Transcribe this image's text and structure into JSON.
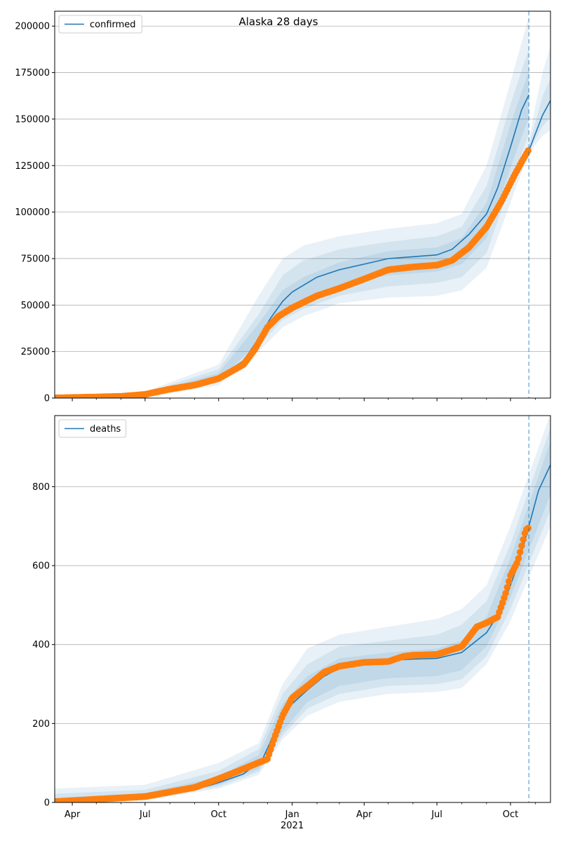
{
  "figure": {
    "suptitle": "Alaska 28 days"
  },
  "colors": {
    "model": "#1f77b4",
    "observed": "#ff7f0e",
    "band": "#1f77b4",
    "grid": "#b0b0b0",
    "forecast_line": "#1f77b4"
  },
  "chart_data": [
    {
      "type": "line",
      "legend": "top-left",
      "legend_label": "confirmed",
      "x_axis_type": "date",
      "xlim": [
        "2020-03-10",
        "2021-11-20"
      ],
      "ylim": [
        0,
        208000
      ],
      "y_ticks": [
        0,
        25000,
        50000,
        75000,
        100000,
        125000,
        150000,
        175000,
        200000
      ],
      "y_tick_labels": [
        "0",
        "25000",
        "50000",
        "75000",
        "100000",
        "125000",
        "150000",
        "175000",
        "200000"
      ],
      "x_ticks": [
        "2020-04-01",
        "2020-07-01",
        "2020-10-01",
        "2021-01-01",
        "2021-04-01",
        "2021-07-01",
        "2021-10-01"
      ],
      "x_tick_labels": [
        "Apr",
        "Jul",
        "Oct",
        "Jan",
        "Apr",
        "Jul",
        "Oct"
      ],
      "x_minor_ticks": [
        "2020-05-01",
        "2020-06-01",
        "2020-08-01",
        "2020-09-01",
        "2020-11-01",
        "2020-12-01",
        "2021-02-01",
        "2021-03-01",
        "2021-05-01",
        "2021-06-01",
        "2021-08-01",
        "2021-09-01",
        "2021-11-01"
      ],
      "year_labels": [],
      "grid": "horizontal",
      "forecast_date": "2021-10-24",
      "series": [
        {
          "name": "confirmed",
          "role": "model",
          "x": [
            "2020-03-10",
            "2020-06-01",
            "2020-08-01",
            "2020-10-01",
            "2020-11-01",
            "2020-11-20",
            "2020-12-05",
            "2020-12-20",
            "2021-01-01",
            "2021-02-01",
            "2021-03-01",
            "2021-04-01",
            "2021-05-01",
            "2021-06-01",
            "2021-07-01",
            "2021-07-20",
            "2021-08-10",
            "2021-09-01",
            "2021-09-15",
            "2021-10-01",
            "2021-10-15",
            "2021-10-24"
          ],
          "y": [
            0,
            1000,
            5000,
            11500,
            20000,
            32000,
            43000,
            52000,
            57000,
            65000,
            69000,
            72000,
            75000,
            76000,
            77000,
            80000,
            88000,
            99000,
            113000,
            135000,
            155000,
            163000
          ]
        },
        {
          "name": "confirmed (continuation)",
          "role": "model_continuation",
          "x": [
            "2021-10-24",
            "2021-11-01",
            "2021-11-10",
            "2021-11-20"
          ],
          "y": [
            133000,
            142000,
            152000,
            160000
          ]
        },
        {
          "name": "observed",
          "role": "observed",
          "x": [
            "2020-03-10",
            "2020-06-01",
            "2020-07-01",
            "2020-08-01",
            "2020-09-01",
            "2020-10-01",
            "2020-11-01",
            "2020-11-15",
            "2020-12-01",
            "2020-12-15",
            "2021-01-01",
            "2021-02-01",
            "2021-03-01",
            "2021-04-01",
            "2021-05-01",
            "2021-06-01",
            "2021-07-01",
            "2021-07-20",
            "2021-08-10",
            "2021-09-01",
            "2021-09-20",
            "2021-10-05",
            "2021-10-15",
            "2021-10-23"
          ],
          "y": [
            100,
            900,
            2000,
            4800,
            7000,
            10500,
            18000,
            26000,
            38000,
            44000,
            48500,
            55000,
            59000,
            64000,
            69000,
            70500,
            71500,
            74000,
            81000,
            92000,
            106000,
            119000,
            127000,
            133000
          ]
        }
      ],
      "bands": [
        {
          "x": [
            "2020-03-10",
            "2020-07-01",
            "2020-10-01",
            "2020-11-20",
            "2020-12-20",
            "2021-01-15",
            "2021-03-01",
            "2021-05-01",
            "2021-07-01",
            "2021-08-01",
            "2021-09-01",
            "2021-10-01",
            "2021-10-24"
          ],
          "lower": [
            0,
            0,
            7000,
            25000,
            38000,
            44000,
            51000,
            54000,
            55000,
            58000,
            70000,
            105000,
            132000
          ],
          "upper": [
            1000,
            3500,
            18000,
            55000,
            75000,
            82000,
            87000,
            91000,
            94000,
            99000,
            125000,
            170000,
            205000
          ]
        },
        {
          "x": [
            "2020-03-10",
            "2020-07-01",
            "2020-10-01",
            "2020-11-20",
            "2020-12-20",
            "2021-01-15",
            "2021-03-01",
            "2021-05-01",
            "2021-07-01",
            "2021-08-01",
            "2021-09-01",
            "2021-10-01",
            "2021-10-24"
          ],
          "lower": [
            0,
            300,
            8500,
            28000,
            42000,
            48000,
            55000,
            60000,
            62000,
            65000,
            78000,
            115000,
            142000
          ],
          "upper": [
            700,
            2800,
            15500,
            45000,
            66000,
            74000,
            80000,
            84000,
            87000,
            92000,
            114000,
            158000,
            188000
          ]
        },
        {
          "x": [
            "2020-03-10",
            "2020-07-01",
            "2020-10-01",
            "2020-11-20",
            "2020-12-20",
            "2021-01-15",
            "2021-03-01",
            "2021-05-01",
            "2021-07-01",
            "2021-08-01",
            "2021-09-01",
            "2021-10-01",
            "2021-10-24"
          ],
          "lower": [
            0,
            500,
            9500,
            30000,
            46000,
            52000,
            60000,
            66000,
            68000,
            72000,
            86000,
            124000,
            151000
          ],
          "upper": [
            500,
            2300,
            13500,
            40000,
            58000,
            65000,
            73000,
            79000,
            81000,
            86000,
            105000,
            147000,
            176000
          ]
        },
        {
          "x": [
            "2021-10-24",
            "2021-11-01",
            "2021-11-10",
            "2021-11-20"
          ],
          "lower": [
            131000,
            136000,
            141000,
            144000
          ],
          "upper": [
            138000,
            157000,
            175000,
            189000
          ]
        },
        {
          "x": [
            "2021-10-24",
            "2021-11-01",
            "2021-11-10",
            "2021-11-20"
          ],
          "lower": [
            132000,
            139000,
            146000,
            151000
          ],
          "upper": [
            136000,
            148000,
            162000,
            172000
          ]
        }
      ]
    },
    {
      "type": "line",
      "legend": "top-left",
      "legend_label": "deaths",
      "x_axis_type": "date",
      "xlim": [
        "2020-03-10",
        "2021-11-20"
      ],
      "ylim": [
        0,
        980
      ],
      "y_ticks": [
        0,
        200,
        400,
        600,
        800
      ],
      "y_tick_labels": [
        "0",
        "200",
        "400",
        "600",
        "800"
      ],
      "x_ticks": [
        "2020-04-01",
        "2020-07-01",
        "2020-10-01",
        "2021-01-01",
        "2021-04-01",
        "2021-07-01",
        "2021-10-01"
      ],
      "x_tick_labels": [
        "Apr",
        "Jul",
        "Oct",
        "Jan",
        "Apr",
        "Jul",
        "Oct"
      ],
      "x_minor_ticks": [
        "2020-05-01",
        "2020-06-01",
        "2020-08-01",
        "2020-09-01",
        "2020-11-01",
        "2020-12-01",
        "2021-02-01",
        "2021-03-01",
        "2021-05-01",
        "2021-06-01",
        "2021-08-01",
        "2021-09-01",
        "2021-11-01"
      ],
      "year_labels": [
        {
          "x": "2021-01-01",
          "label": "2021"
        }
      ],
      "grid": "horizontal",
      "forecast_date": "2021-10-24",
      "series": [
        {
          "name": "deaths",
          "role": "model",
          "x": [
            "2020-03-10",
            "2020-07-01",
            "2020-09-01",
            "2020-10-01",
            "2020-11-01",
            "2020-11-25",
            "2020-12-15",
            "2021-01-01",
            "2021-01-20",
            "2021-02-10",
            "2021-03-01",
            "2021-04-01",
            "2021-05-01",
            "2021-06-01",
            "2021-07-01",
            "2021-08-01",
            "2021-09-01",
            "2021-09-20",
            "2021-10-10",
            "2021-10-24",
            "2021-11-05",
            "2021-11-20"
          ],
          "y": [
            3,
            15,
            32,
            50,
            72,
            110,
            200,
            250,
            285,
            320,
            340,
            355,
            360,
            363,
            365,
            380,
            430,
            490,
            600,
            700,
            790,
            855
          ]
        },
        {
          "name": "observed",
          "role": "observed",
          "x": [
            "2020-03-10",
            "2020-07-01",
            "2020-09-01",
            "2020-10-01",
            "2020-11-01",
            "2020-12-01",
            "2020-12-10",
            "2020-12-20",
            "2021-01-01",
            "2021-01-20",
            "2021-02-10",
            "2021-03-01",
            "2021-04-01",
            "2021-05-01",
            "2021-05-20",
            "2021-06-01",
            "2021-07-01",
            "2021-08-01",
            "2021-08-20",
            "2021-09-01",
            "2021-09-15",
            "2021-09-25",
            "2021-10-01",
            "2021-10-10",
            "2021-10-20",
            "2021-10-23"
          ],
          "y": [
            2,
            15,
            38,
            60,
            85,
            110,
            165,
            220,
            265,
            295,
            330,
            345,
            355,
            357,
            370,
            373,
            375,
            395,
            445,
            455,
            470,
            530,
            575,
            610,
            690,
            695
          ]
        }
      ],
      "bands": [
        {
          "x": [
            "2020-03-10",
            "2020-07-01",
            "2020-10-01",
            "2020-11-20",
            "2020-12-20",
            "2021-01-20",
            "2021-03-01",
            "2021-05-01",
            "2021-07-01",
            "2021-08-01",
            "2021-09-01",
            "2021-10-01",
            "2021-11-20"
          ],
          "lower": [
            0,
            5,
            35,
            70,
            160,
            220,
            255,
            275,
            280,
            290,
            350,
            460,
            700
          ],
          "upper": [
            35,
            45,
            100,
            150,
            300,
            390,
            425,
            445,
            465,
            490,
            550,
            700,
            985
          ]
        },
        {
          "x": [
            "2020-03-10",
            "2020-07-01",
            "2020-10-01",
            "2020-11-20",
            "2020-12-20",
            "2021-01-20",
            "2021-03-01",
            "2021-05-01",
            "2021-07-01",
            "2021-08-01",
            "2021-09-01",
            "2021-10-01",
            "2021-11-20"
          ],
          "lower": [
            0,
            8,
            40,
            78,
            170,
            238,
            275,
            295,
            300,
            312,
            370,
            490,
            740
          ],
          "upper": [
            22,
            32,
            80,
            135,
            275,
            350,
            395,
            410,
            425,
            450,
            510,
            655,
            950
          ]
        },
        {
          "x": [
            "2020-03-10",
            "2020-07-01",
            "2020-10-01",
            "2020-11-20",
            "2020-12-20",
            "2021-01-20",
            "2021-03-01",
            "2021-05-01",
            "2021-07-01",
            "2021-08-01",
            "2021-09-01",
            "2021-10-01",
            "2021-11-20"
          ],
          "lower": [
            0,
            10,
            45,
            85,
            180,
            255,
            295,
            315,
            320,
            335,
            395,
            520,
            780
          ],
          "upper": [
            12,
            24,
            65,
            120,
            250,
            320,
            365,
            380,
            390,
            410,
            470,
            620,
            915
          ]
        }
      ]
    }
  ]
}
